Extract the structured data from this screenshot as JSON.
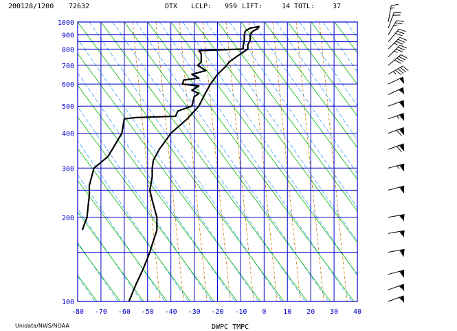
{
  "header": {
    "datetime": "200128/1200",
    "station_id": "72632",
    "station": "DTX",
    "lclp_label": "LCLP:",
    "lclp_value": "959",
    "lift_label": "LIFT:",
    "lift_value": "14",
    "totl_label": "TOTL:",
    "totl_value": "37"
  },
  "credit": "Unidata/NWS/NOAA",
  "colors": {
    "grid": "#0000c8",
    "dry_adiabat": "#00b400",
    "moist_adiabat": "#1e90ff",
    "mixing_ratio": "#c87800",
    "profile": "#000000"
  },
  "chart_data": {
    "type": "line",
    "title": "",
    "xlabel": "DWPC TMPC",
    "ylabel": "",
    "xlim": [
      -80,
      40
    ],
    "ylim": [
      1000,
      100
    ],
    "y_scale": "log-pressure",
    "grid": true,
    "x_ticks": [
      -80,
      -70,
      -60,
      -50,
      -40,
      -30,
      -20,
      -10,
      0,
      10,
      20,
      30,
      40
    ],
    "y_ticks": [
      100,
      200,
      300,
      400,
      500,
      600,
      700,
      800,
      900,
      1000
    ],
    "series": [
      {
        "name": "TMPC",
        "pressure": [
          965,
          945,
          925,
          900,
          860,
          830,
          800,
          780,
          760,
          720,
          700,
          650,
          600,
          550,
          500,
          450,
          400,
          350,
          320,
          300,
          280,
          250,
          230,
          200,
          180,
          160,
          150,
          130,
          115,
          100
        ],
        "values": [
          -2,
          -3,
          -5,
          -6,
          -6,
          -7,
          -7,
          -9,
          -11,
          -15,
          -16,
          -20,
          -23,
          -25.5,
          -28,
          -33,
          -40,
          -45,
          -47.5,
          -48,
          -48,
          -49,
          -48,
          -46,
          -46,
          -48,
          -49,
          -52,
          -55,
          -58
        ]
      },
      {
        "name": "DWPC",
        "pressure": [
          965,
          950,
          930,
          900,
          860,
          820,
          800,
          790,
          770,
          750,
          720,
          700,
          670,
          650,
          630,
          620,
          600,
          590,
          570,
          555,
          540,
          500,
          480,
          460,
          455,
          450,
          400,
          330,
          300,
          260,
          240,
          220,
          200,
          190,
          180
        ],
        "values": [
          -2,
          -6,
          -8,
          -8.5,
          -8.5,
          -9,
          -9,
          -28,
          -27,
          -27,
          -27,
          -28.5,
          -25,
          -31,
          -28,
          -34.5,
          -35,
          -28,
          -31,
          -28,
          -30,
          -31,
          -37,
          -38,
          -55,
          -60,
          -61,
          -67,
          -73,
          -75,
          -75,
          -75.5,
          -76,
          -77,
          -78
        ]
      }
    ],
    "winds": {
      "pressure": [
        1000,
        950,
        900,
        850,
        800,
        750,
        700,
        650,
        600,
        550,
        500,
        450,
        400,
        350,
        300,
        250,
        200,
        175,
        150,
        125,
        110,
        100
      ],
      "direction": [
        190,
        200,
        210,
        220,
        225,
        225,
        230,
        240,
        245,
        245,
        250,
        250,
        250,
        250,
        255,
        255,
        260,
        260,
        260,
        255,
        250,
        250
      ],
      "speed_kt": [
        15,
        20,
        25,
        30,
        35,
        35,
        40,
        45,
        50,
        55,
        60,
        65,
        70,
        70,
        65,
        60,
        55,
        55,
        60,
        60,
        55,
        55
      ]
    }
  }
}
